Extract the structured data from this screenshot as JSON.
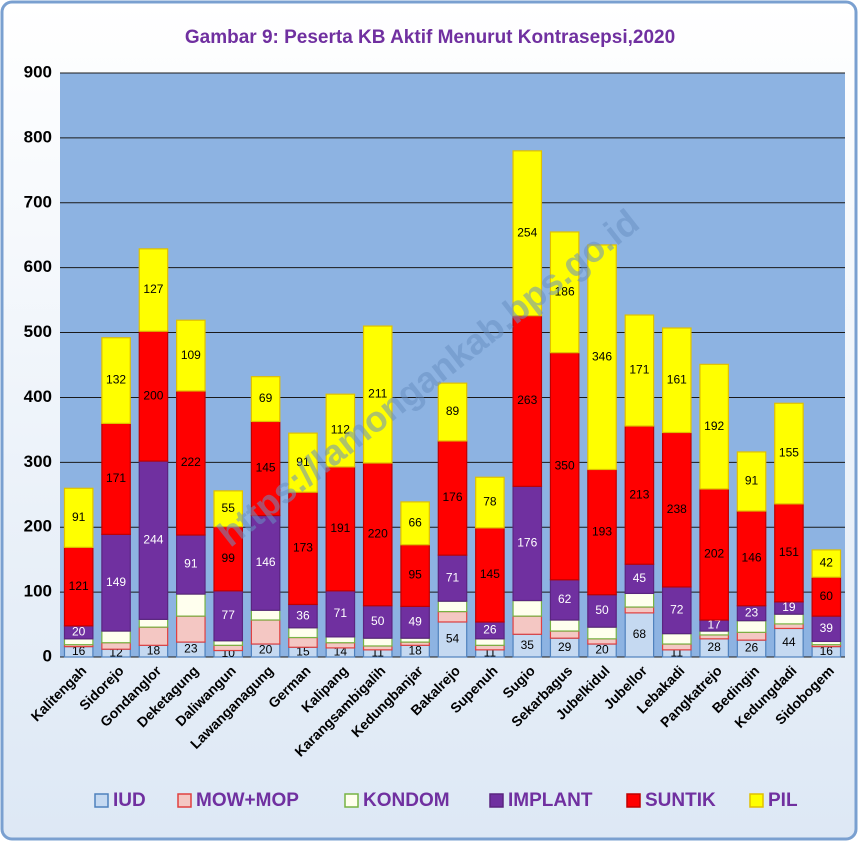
{
  "chart_data": {
    "type": "stacked_bar",
    "title": "Gambar  9: Peserta  KB Aktif Menurut  Kontrasepsi,2020",
    "watermark": "https://lamongankab.bps.go.id",
    "categories": [
      "Kalitengah",
      "Sidorejo",
      "Gondanglor",
      "Deketagung",
      "Daliwangun",
      "Lawanganagung",
      "German",
      "Kalipang",
      "Karangsambigalih",
      "Kedungbanjar",
      "Bakalrejo",
      "Supenuh",
      "Sugio",
      "Sekarbagus",
      "Jubelkidul",
      "Jubellor",
      "Lebakadi",
      "Pangkatrejo",
      "Bedingin",
      "Kedungdadi",
      "Sidobogem"
    ],
    "series": [
      {
        "name": "IUD",
        "color": "#c5d9f1",
        "border": "#4f81bd",
        "show_labels": true,
        "label_color": "#000000",
        "values": [
          16,
          12,
          18,
          23,
          10,
          20,
          15,
          14,
          11,
          18,
          54,
          11,
          35,
          29,
          20,
          68,
          11,
          28,
          26,
          44,
          16
        ]
      },
      {
        "name": "MOW+MOP",
        "color": "#f4c7c3",
        "border": "#e04040",
        "show_labels": false,
        "values": [
          3,
          10,
          28,
          40,
          8,
          37,
          15,
          8,
          6,
          5,
          16,
          7,
          28,
          11,
          8,
          9,
          9,
          6,
          12,
          7,
          3
        ]
      },
      {
        "name": "KONDOM",
        "color": "#ffffee",
        "border": "#77b343",
        "show_labels": false,
        "values": [
          9,
          18,
          12,
          34,
          7,
          15,
          15,
          9,
          12,
          6,
          16,
          10,
          24,
          17,
          18,
          21,
          16,
          6,
          18,
          15,
          5
        ]
      },
      {
        "name": "IMPLANT",
        "color": "#7030a0",
        "border": "#5a2480",
        "show_labels": true,
        "label_color": "#ffffff",
        "values": [
          20,
          149,
          244,
          91,
          77,
          146,
          36,
          71,
          50,
          49,
          71,
          26,
          176,
          62,
          50,
          45,
          72,
          17,
          23,
          19,
          39
        ]
      },
      {
        "name": "SUNTIK",
        "color": "#ff0000",
        "border": "#c00000",
        "show_labels": true,
        "label_color": "#000000",
        "values": [
          121,
          171,
          200,
          222,
          99,
          145,
          173,
          191,
          220,
          95,
          176,
          145,
          263,
          350,
          193,
          213,
          238,
          202,
          146,
          151,
          60
        ]
      },
      {
        "name": "PIL",
        "color": "#ffff00",
        "border": "#e0c000",
        "show_labels": true,
        "label_color": "#000000",
        "values": [
          91,
          132,
          127,
          109,
          55,
          69,
          91,
          112,
          211,
          66,
          89,
          78,
          254,
          186,
          346,
          171,
          161,
          192,
          91,
          155,
          42
        ]
      }
    ],
    "ylim": [
      0,
      900
    ],
    "yticks": [
      0,
      100,
      200,
      300,
      400,
      500,
      600,
      700,
      800,
      900
    ],
    "grid": true,
    "legend": "bottom"
  }
}
